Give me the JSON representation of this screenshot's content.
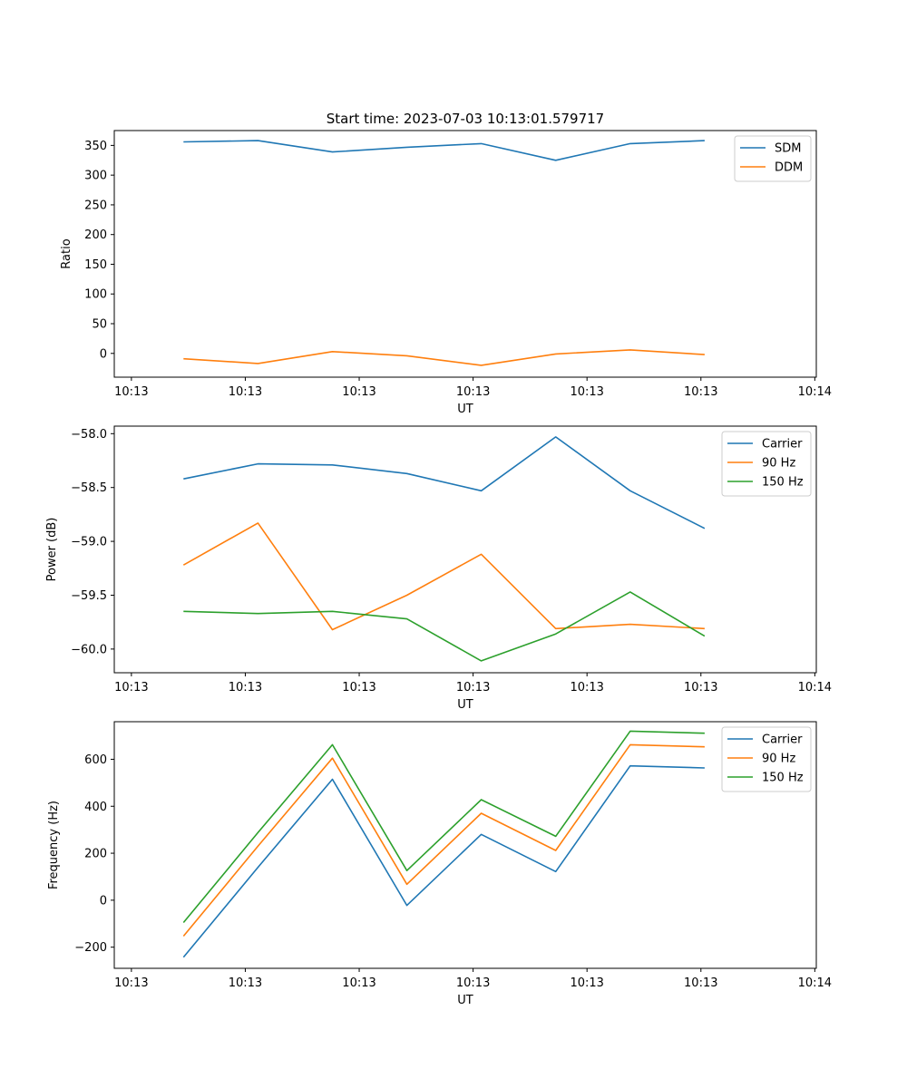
{
  "title": "Start time: 2023-07-03 10:13:01.579717",
  "colors": {
    "blue": "#1f77b4",
    "orange": "#ff7f0e",
    "green": "#2ca02c"
  },
  "chart_data": [
    {
      "type": "line",
      "title": "Start time: 2023-07-03 10:13:01.579717",
      "xlabel": "UT",
      "ylabel": "Ratio",
      "xlim": [
        -0.23,
        9.2
      ],
      "ylim": [
        -40,
        375
      ],
      "x": [
        0.7,
        1.7,
        2.7,
        3.7,
        4.7,
        5.7,
        6.7,
        7.7
      ],
      "xticks": [
        0,
        1.53,
        3.06,
        4.59,
        6.12,
        7.65,
        9.18
      ],
      "xtick_labels": [
        "10:13",
        "10:13",
        "10:13",
        "10:13",
        "10:13",
        "10:13",
        "10:14"
      ],
      "yticks": [
        0,
        50,
        100,
        150,
        200,
        250,
        300,
        350
      ],
      "ytick_labels": [
        "0",
        "50",
        "100",
        "150",
        "200",
        "250",
        "300",
        "350"
      ],
      "legend": "top-right",
      "series": [
        {
          "name": "SDM",
          "color": "#1f77b4",
          "values": [
            356,
            358,
            339,
            347,
            353,
            325,
            353,
            358
          ]
        },
        {
          "name": "DDM",
          "color": "#ff7f0e",
          "values": [
            -9,
            -17,
            3,
            -4,
            -20,
            -1,
            6,
            -2
          ]
        }
      ]
    },
    {
      "type": "line",
      "title": "",
      "xlabel": "UT",
      "ylabel": "Power (dB)",
      "xlim": [
        -0.23,
        9.2
      ],
      "ylim": [
        -60.22,
        -57.93
      ],
      "x": [
        0.7,
        1.7,
        2.7,
        3.7,
        4.7,
        5.7,
        6.7,
        7.7
      ],
      "xticks": [
        0,
        1.53,
        3.06,
        4.59,
        6.12,
        7.65,
        9.18
      ],
      "xtick_labels": [
        "10:13",
        "10:13",
        "10:13",
        "10:13",
        "10:13",
        "10:13",
        "10:14"
      ],
      "yticks": [
        -60.0,
        -59.5,
        -59.0,
        -58.5,
        -58.0
      ],
      "ytick_labels": [
        "−60.0",
        "−59.5",
        "−59.0",
        "−58.5",
        "−58.0"
      ],
      "legend": "top-right",
      "series": [
        {
          "name": "Carrier",
          "color": "#1f77b4",
          "values": [
            -58.42,
            -58.28,
            -58.29,
            -58.37,
            -58.53,
            -58.03,
            -58.53,
            -58.88
          ]
        },
        {
          "name": "90 Hz",
          "color": "#ff7f0e",
          "values": [
            -59.22,
            -58.83,
            -59.82,
            -59.5,
            -59.12,
            -59.81,
            -59.77,
            -59.81
          ]
        },
        {
          "name": "150 Hz",
          "color": "#2ca02c",
          "values": [
            -59.65,
            -59.67,
            -59.65,
            -59.72,
            -60.11,
            -59.86,
            -59.47,
            -59.88
          ]
        }
      ]
    },
    {
      "type": "line",
      "title": "",
      "xlabel": "UT",
      "ylabel": "Frequency (Hz)",
      "xlim": [
        -0.23,
        9.2
      ],
      "ylim": [
        -290,
        760
      ],
      "x": [
        0.7,
        1.7,
        2.7,
        3.7,
        4.7,
        5.7,
        6.7,
        7.7
      ],
      "xticks": [
        0,
        1.53,
        3.06,
        4.59,
        6.12,
        7.65,
        9.18
      ],
      "xtick_labels": [
        "10:13",
        "10:13",
        "10:13",
        "10:13",
        "10:13",
        "10:13",
        "10:14"
      ],
      "yticks": [
        -200,
        0,
        200,
        400,
        600
      ],
      "ytick_labels": [
        "−200",
        "0",
        "200",
        "400",
        "600"
      ],
      "legend": "top-right",
      "series": [
        {
          "name": "Carrier",
          "color": "#1f77b4",
          "values": [
            -243,
            140,
            515,
            -22,
            280,
            122,
            572,
            563
          ]
        },
        {
          "name": "90 Hz",
          "color": "#ff7f0e",
          "values": [
            -153,
            230,
            605,
            68,
            370,
            212,
            662,
            653
          ]
        },
        {
          "name": "150 Hz",
          "color": "#2ca02c",
          "values": [
            -95,
            288,
            662,
            126,
            428,
            272,
            720,
            711
          ]
        }
      ]
    }
  ]
}
